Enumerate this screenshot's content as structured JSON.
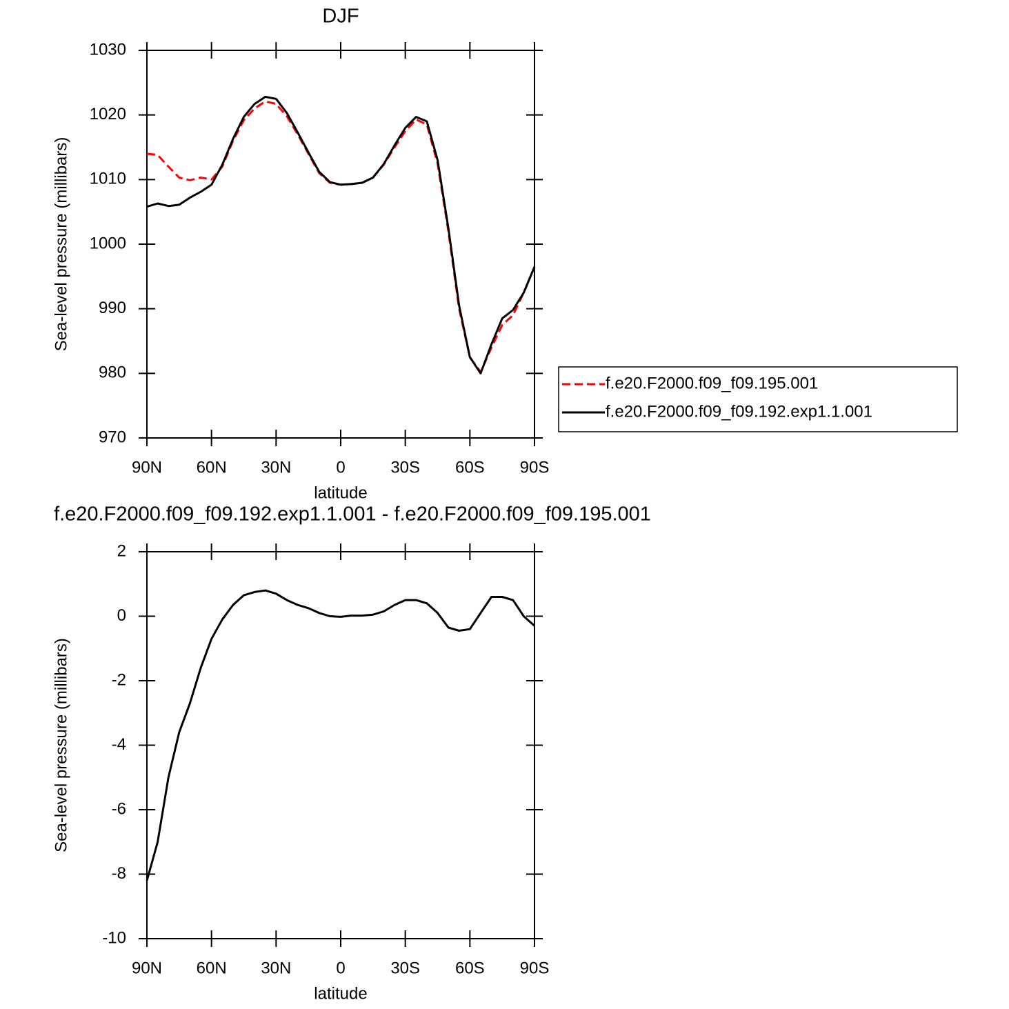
{
  "chart_data": [
    {
      "type": "line",
      "title": "DJF",
      "xlabel": "latitude",
      "ylabel": "Sea-level pressure (millibars)",
      "x": [
        90,
        85,
        80,
        75,
        70,
        65,
        60,
        55,
        50,
        45,
        40,
        35,
        30,
        25,
        20,
        15,
        10,
        5,
        0,
        -5,
        -10,
        -15,
        -20,
        -25,
        -30,
        -35,
        -40,
        -45,
        -50,
        -55,
        -60,
        -65,
        -70,
        -75,
        -80,
        -85,
        -90
      ],
      "series": [
        {
          "name": "f.e20.F2000.f09_f09.195.001",
          "color": "#ff0000",
          "linestyle": "dashed",
          "values": [
            1014,
            1013.8,
            1012,
            1010.3,
            1009.9,
            1010.3,
            1010,
            1012,
            1016,
            1019.2,
            1021,
            1022.1,
            1021.7,
            1019.8,
            1017,
            1014,
            1011,
            1009.5,
            1009.2,
            1009.3,
            1009.5,
            1010.3,
            1012.3,
            1015,
            1017.5,
            1019.3,
            1018.5,
            1012.5,
            1002,
            990,
            982.5,
            980.2,
            984,
            987.5,
            989,
            992.5,
            996.5
          ]
        },
        {
          "name": "f.e20.F2000.f09_f09.192.exp1.1.001",
          "color": "#000000",
          "linestyle": "solid",
          "values": [
            1005.8,
            1006.3,
            1005.9,
            1006.1,
            1007.2,
            1008.1,
            1009.2,
            1012.3,
            1016.3,
            1019.7,
            1021.7,
            1022.8,
            1022.5,
            1020.3,
            1017.3,
            1014.2,
            1011.2,
            1009.6,
            1009.2,
            1009.3,
            1009.5,
            1010.3,
            1012.4,
            1015.3,
            1018,
            1019.7,
            1019,
            1013,
            1002.5,
            990.5,
            982.5,
            980,
            984.5,
            988.5,
            989.8,
            992.5,
            996.5
          ]
        }
      ],
      "xlim": [
        90,
        -90
      ],
      "xticks": [
        {
          "value": 90,
          "label": "90N"
        },
        {
          "value": 60,
          "label": "60N"
        },
        {
          "value": 30,
          "label": "30N"
        },
        0,
        {
          "value": -30,
          "label": "30S"
        },
        {
          "value": -60,
          "label": "60S"
        },
        {
          "value": -90,
          "label": "90S"
        }
      ],
      "ylim": [
        970,
        1030
      ],
      "yticks": [
        970,
        980,
        990,
        1000,
        1010,
        1020,
        1030
      ],
      "legend": "right"
    },
    {
      "type": "line",
      "title": "f.e20.F2000.f09_f09.192.exp1.1.001 - f.e20.F2000.f09_f09.195.001",
      "xlabel": "latitude",
      "ylabel": "Sea-level pressure (millibars)",
      "x": [
        90,
        85,
        80,
        75,
        70,
        65,
        60,
        55,
        50,
        45,
        40,
        35,
        30,
        25,
        20,
        15,
        10,
        5,
        0,
        -5,
        -10,
        -15,
        -20,
        -25,
        -30,
        -35,
        -40,
        -45,
        -50,
        -55,
        -60,
        -65,
        -70,
        -75,
        -80,
        -85,
        -90
      ],
      "series": [
        {
          "color": "#000000",
          "linestyle": "solid",
          "values": [
            -8.2,
            -7,
            -5,
            -3.6,
            -2.7,
            -1.6,
            -0.7,
            -0.1,
            0.35,
            0.65,
            0.75,
            0.8,
            0.7,
            0.5,
            0.35,
            0.25,
            0.1,
            0,
            -0.02,
            0.02,
            0.02,
            0.05,
            0.15,
            0.35,
            0.5,
            0.5,
            0.4,
            0.1,
            -0.35,
            -0.45,
            -0.4,
            0.1,
            0.6,
            0.6,
            0.5,
            0,
            -0.3
          ]
        }
      ],
      "xlim": [
        90,
        -90
      ],
      "xticks": [
        {
          "value": 90,
          "label": "90N"
        },
        {
          "value": 60,
          "label": "60N"
        },
        {
          "value": 30,
          "label": "30N"
        },
        0,
        {
          "value": -30,
          "label": "30S"
        },
        {
          "value": -60,
          "label": "60S"
        },
        {
          "value": -90,
          "label": "90S"
        }
      ],
      "ylim": [
        -10,
        2
      ],
      "yticks": [
        -10,
        -8,
        -6,
        -4,
        -2,
        0,
        2
      ]
    }
  ]
}
